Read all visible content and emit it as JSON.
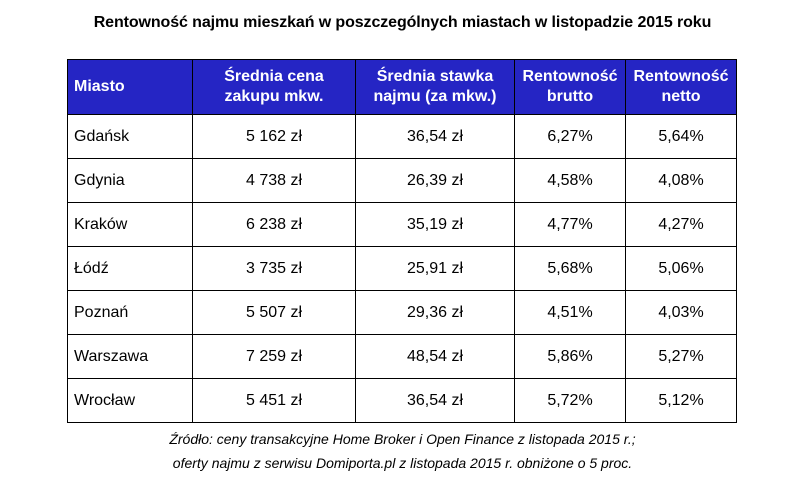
{
  "chart_data": {
    "type": "table",
    "title": "Rentowność najmu mieszkań w poszczególnych miastach w listopadzie 2015 roku",
    "columns": [
      "Miasto",
      "Średnia cena zakupu mkw.",
      "Średnia stawka najmu (za mkw.)",
      "Rentowność brutto",
      "Rentowność netto"
    ],
    "column_lines": [
      [
        "Miasto"
      ],
      [
        "Średnia cena",
        "zakupu mkw."
      ],
      [
        "Średnia stawka",
        "najmu (za mkw.)"
      ],
      [
        "Rentowność",
        "brutto"
      ],
      [
        "Rentowność",
        "netto"
      ]
    ],
    "rows": [
      [
        "Gdańsk",
        "5 162 zł",
        "36,54 zł",
        "6,27%",
        "5,64%"
      ],
      [
        "Gdynia",
        "4 738 zł",
        "26,39 zł",
        "4,58%",
        "4,08%"
      ],
      [
        "Kraków",
        "6 238 zł",
        "35,19 zł",
        "4,77%",
        "4,27%"
      ],
      [
        "Łódź",
        "3 735 zł",
        "25,91 zł",
        "5,68%",
        "5,06%"
      ],
      [
        "Poznań",
        "5 507 zł",
        "29,36 zł",
        "4,51%",
        "4,03%"
      ],
      [
        "Warszawa",
        "7 259 zł",
        "48,54 zł",
        "5,86%",
        "5,27%"
      ],
      [
        "Wrocław",
        "5 451 zł",
        "36,54 zł",
        "5,72%",
        "5,12%"
      ]
    ],
    "source_lines": [
      "Źródło: ceny transakcyjne Home Broker i Open Finance z listopada 2015 r.;",
      "oferty najmu z serwisu Domiporta.pl z listopada 2015 r. obniżone o 5 proc."
    ]
  },
  "colors": {
    "header_background": "#2525c4",
    "header_text": "#ffffff",
    "border": "#000000"
  }
}
